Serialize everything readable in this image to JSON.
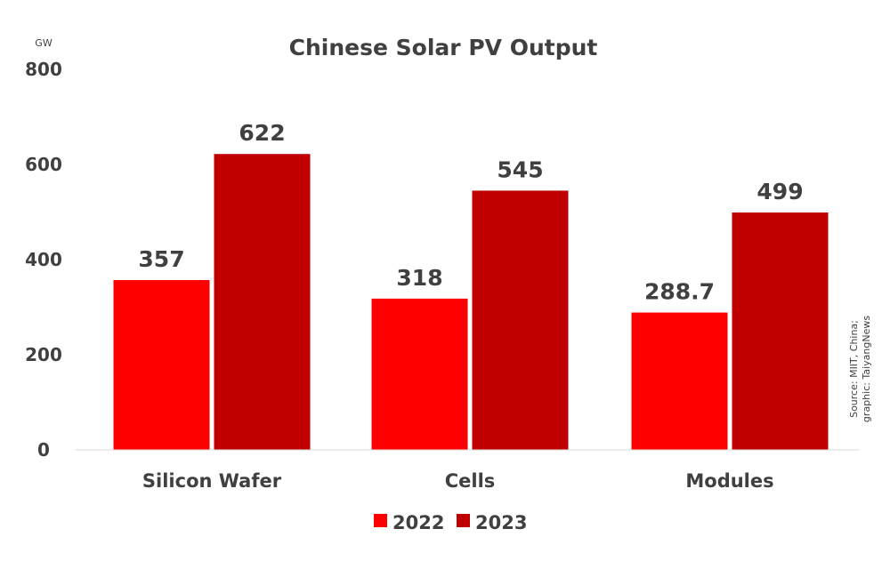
{
  "chart_data": {
    "type": "bar",
    "title": "Chinese Solar PV Output",
    "ylabel": "GW",
    "ylim": [
      0,
      800
    ],
    "yticks": [
      0,
      200,
      400,
      600,
      800
    ],
    "categories": [
      "Silicon Wafer",
      "Cells",
      "Modules"
    ],
    "series": [
      {
        "name": "2022",
        "values": [
          357,
          318,
          288.7
        ],
        "labels": [
          "357",
          "318",
          "288.7"
        ],
        "color": "#ff0000"
      },
      {
        "name": "2023",
        "values": [
          622,
          545,
          499
        ],
        "labels": [
          "622",
          "545",
          "499"
        ],
        "color": "#c00000"
      }
    ],
    "legend": "bottom",
    "grid": false,
    "source": [
      "Source: MIIT, China;",
      "graphic: TaiyangNews"
    ]
  }
}
